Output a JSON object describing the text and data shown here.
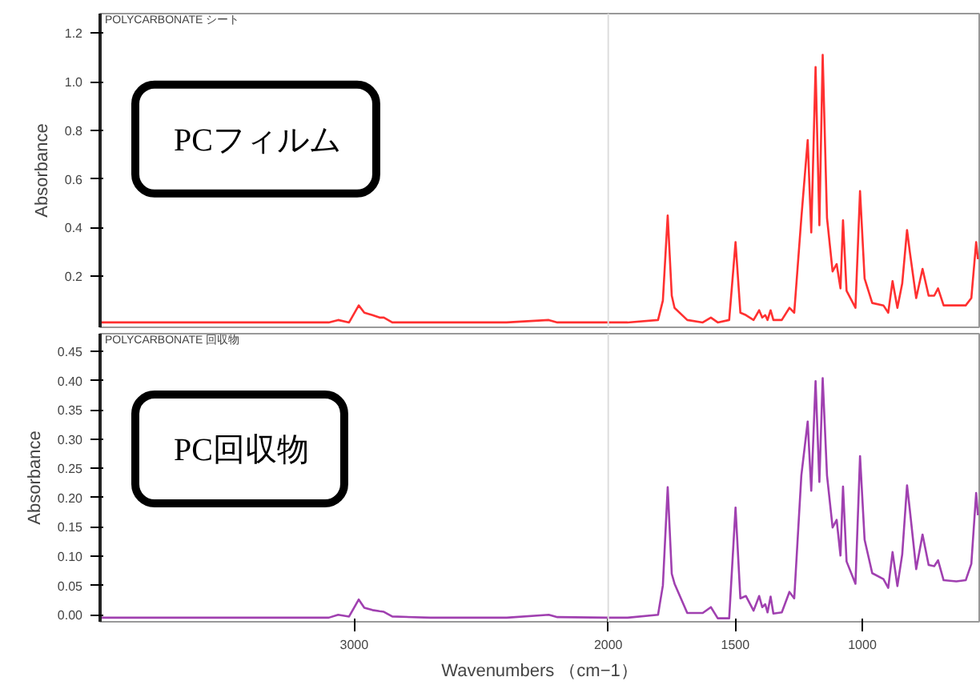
{
  "chart_data": [
    {
      "type": "line",
      "title": "POLYCARBONATE シート",
      "ylabel": "Absorbance",
      "annotations": [
        "PCフィルム"
      ],
      "tick_labels": "y",
      "xlim": [
        4000,
        540
      ],
      "ylim": [
        -0.01,
        1.28
      ],
      "yticks": [
        0.2,
        0.4,
        0.6,
        0.8,
        {
          "value": 1.0,
          "label": "1.0"
        },
        1.2
      ],
      "ref_lines": [
        {
          "axis": "x",
          "value": 2000,
          "color": "#dddddd"
        }
      ],
      "series": [
        {
          "color": "#ff3030",
          "x": [
            4000,
            3500,
            3100,
            3063,
            3020,
            2982,
            2960,
            2928,
            2900,
            2883,
            2850,
            2700,
            2400,
            2234,
            2200,
            2000,
            1924,
            1804,
            1785,
            1766,
            1750,
            1739,
            1689,
            1628,
            1596,
            1569,
            1524,
            1499,
            1480,
            1458,
            1428,
            1406,
            1394,
            1382,
            1373,
            1361,
            1350,
            1317,
            1287,
            1268,
            1240,
            1215,
            1201,
            1184,
            1169,
            1156,
            1139,
            1117,
            1101,
            1086,
            1076,
            1062,
            1027,
            1009,
            991,
            961,
            917,
            898,
            881,
            862,
            843,
            824,
            813,
            788,
            763,
            739,
            717,
            702,
            680,
            630,
            593,
            571,
            552,
            545
          ],
          "values": [
            0.01,
            0.01,
            0.01,
            0.02,
            0.01,
            0.08,
            0.05,
            0.04,
            0.03,
            0.03,
            0.01,
            0.01,
            0.01,
            0.02,
            0.01,
            0.01,
            0.01,
            0.02,
            0.1,
            0.45,
            0.12,
            0.07,
            0.02,
            0.01,
            0.03,
            0.01,
            0.02,
            0.34,
            0.05,
            0.04,
            0.02,
            0.06,
            0.03,
            0.04,
            0.02,
            0.06,
            0.02,
            0.02,
            0.07,
            0.05,
            0.44,
            0.76,
            0.38,
            1.06,
            0.41,
            1.11,
            0.44,
            0.22,
            0.25,
            0.15,
            0.43,
            0.14,
            0.07,
            0.55,
            0.19,
            0.09,
            0.08,
            0.05,
            0.18,
            0.07,
            0.17,
            0.39,
            0.3,
            0.11,
            0.23,
            0.12,
            0.12,
            0.15,
            0.08,
            0.08,
            0.08,
            0.11,
            0.34,
            0.27
          ]
        }
      ]
    },
    {
      "type": "line",
      "title": "POLYCARBONATE 回収物",
      "xlabel": "Wavenumbers （cm−1）",
      "ylabel": "Absorbance",
      "annotations": [
        "PC回収物"
      ],
      "xlim": [
        4000,
        540
      ],
      "ylim": [
        -0.012,
        0.48
      ],
      "xticks": [
        3000,
        2000,
        1500,
        1000
      ],
      "yticks": [
        {
          "value": 0,
          "label": "0.00"
        },
        {
          "value": 0.05,
          "label": "0.05"
        },
        {
          "value": 0.1,
          "label": "0.10"
        },
        {
          "value": 0.15,
          "label": "0.15"
        },
        {
          "value": 0.2,
          "label": "0.20"
        },
        {
          "value": 0.25,
          "label": "0.25"
        },
        {
          "value": 0.3,
          "label": "0.30"
        },
        {
          "value": 0.35,
          "label": "0.35"
        },
        {
          "value": 0.4,
          "label": "0.40"
        },
        {
          "value": 0.45,
          "label": "0.45"
        }
      ],
      "ref_lines": [
        {
          "axis": "x",
          "value": 2000,
          "color": "#dddddd"
        }
      ],
      "series": [
        {
          "color": "#a040b0",
          "x": [
            4000,
            3500,
            3100,
            3063,
            3020,
            2982,
            2960,
            2928,
            2900,
            2883,
            2850,
            2700,
            2400,
            2234,
            2200,
            2000,
            1924,
            1804,
            1785,
            1766,
            1750,
            1739,
            1689,
            1628,
            1596,
            1569,
            1524,
            1499,
            1480,
            1458,
            1428,
            1406,
            1394,
            1382,
            1373,
            1361,
            1350,
            1317,
            1287,
            1268,
            1240,
            1215,
            1201,
            1184,
            1169,
            1156,
            1139,
            1117,
            1101,
            1086,
            1076,
            1062,
            1027,
            1009,
            991,
            961,
            917,
            898,
            881,
            862,
            843,
            824,
            813,
            788,
            763,
            739,
            717,
            702,
            680,
            630,
            593,
            571,
            552,
            545
          ],
          "values": [
            -0.005,
            -0.005,
            -0.005,
            0.0,
            -0.003,
            0.026,
            0.012,
            0.008,
            0.006,
            0.005,
            -0.003,
            -0.005,
            -0.005,
            0.0,
            -0.004,
            -0.005,
            -0.005,
            0.0,
            0.05,
            0.218,
            0.07,
            0.053,
            0.003,
            0.003,
            0.013,
            -0.006,
            -0.006,
            0.183,
            0.028,
            0.032,
            0.007,
            0.032,
            0.013,
            0.018,
            0.004,
            0.031,
            0.002,
            0.004,
            0.039,
            0.028,
            0.238,
            0.33,
            0.212,
            0.399,
            0.227,
            0.404,
            0.238,
            0.149,
            0.162,
            0.101,
            0.219,
            0.091,
            0.053,
            0.271,
            0.128,
            0.071,
            0.061,
            0.046,
            0.107,
            0.049,
            0.103,
            0.221,
            0.179,
            0.078,
            0.137,
            0.085,
            0.083,
            0.093,
            0.059,
            0.057,
            0.059,
            0.087,
            0.208,
            0.17
          ]
        }
      ]
    }
  ]
}
